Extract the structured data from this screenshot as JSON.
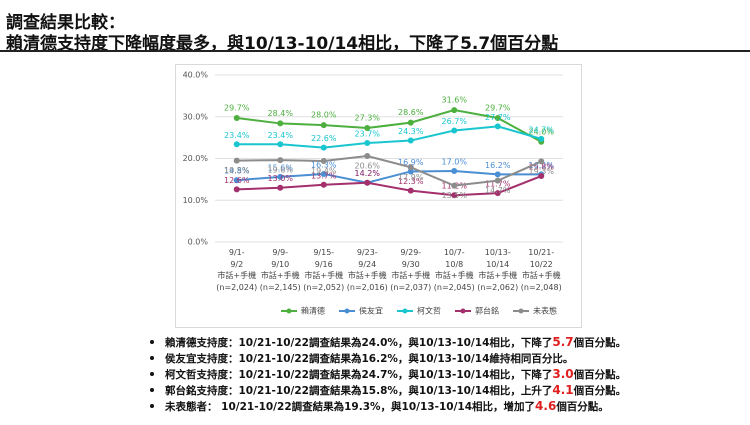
{
  "header": {
    "title": "調查結果比較：",
    "subtitle": "賴清德支持度下降幅度最多，與10/13-10/14相比，下降了5.7個百分點"
  },
  "chart_data": {
    "type": "line",
    "categories": [
      "9/1-\n9/2\n市話+手機\n(n=2,024)",
      "9/9-\n9/10\n市話+手機\n(n=2,145)",
      "9/15-\n9/16\n市話+手機\n(n=2,052)",
      "9/23-\n9/24\n市話+手機\n(n=2,016)",
      "9/29-\n9/30\n市話+手機\n(n=2,037)",
      "10/7-\n10/8\n市話+手機\n(n=2,045)",
      "10/13-\n10/14\n市話+手機\n(n=2,062)",
      "10/21-\n10/22\n市話+手機\n(n=2,048)"
    ],
    "series": [
      {
        "name": "賴清德",
        "color": "#4caf3e",
        "values": [
          29.7,
          28.4,
          28.0,
          27.3,
          28.6,
          31.6,
          29.7,
          24.0
        ],
        "value_labels": [
          "29.7%",
          "28.4%",
          "28.0%",
          "27.3%",
          "28.6%",
          "31.6%",
          "29.7%",
          "24.0%"
        ]
      },
      {
        "name": "侯友宜",
        "color": "#4a8ed4",
        "values": [
          14.8,
          15.6,
          16.3,
          14.2,
          16.9,
          17.0,
          16.2,
          16.2
        ],
        "value_labels": [
          "14.8%",
          "15.6%",
          "16.3%",
          "14.2%",
          "16.9%",
          "17.0%",
          "16.2%",
          "16.2%"
        ]
      },
      {
        "name": "柯文哲",
        "color": "#19c6cf",
        "values": [
          23.4,
          23.4,
          22.6,
          23.7,
          24.3,
          26.7,
          27.7,
          24.7
        ],
        "value_labels": [
          "23.4%",
          "23.4%",
          "22.6%",
          "23.7%",
          "24.3%",
          "26.7%",
          "27.7%",
          "24.7%"
        ]
      },
      {
        "name": "郭台銘",
        "color": "#a3306c",
        "values": [
          12.6,
          13.0,
          13.7,
          14.2,
          12.3,
          11.2,
          11.7,
          15.8
        ],
        "value_labels": [
          "12.6%",
          "13.0%",
          "13.7%",
          "14.2%",
          "12.3%",
          "11.2%",
          "11.7%",
          "15.8%"
        ]
      },
      {
        "name": "未表態",
        "color": "#8c8c8c",
        "values": [
          19.5,
          19.6,
          19.4,
          20.6,
          17.9,
          13.5,
          14.7,
          19.3
        ],
        "value_labels": [
          "19.5%",
          "19.6%",
          "19.4%",
          "20.6%",
          "17.9%",
          "13.5%",
          "14.7%",
          "19.3%"
        ]
      }
    ],
    "ylim": [
      0,
      40
    ],
    "yticks": [
      {
        "value": 0,
        "label": "0.0%"
      },
      {
        "value": 10,
        "label": "10.0%"
      },
      {
        "value": 20,
        "label": "20.0%"
      },
      {
        "value": 30,
        "label": "30.0%"
      },
      {
        "value": 40,
        "label": "40.0%"
      }
    ],
    "grid": true,
    "legend": "bottom"
  },
  "bullets": [
    {
      "text": "賴清德支持度：10/21-10/22調查結果為24.0%，與10/13-10/14相比，下降了",
      "highlight": "5.7",
      "tail": "個百分點。"
    },
    {
      "text": "侯友宜支持度：10/21-10/22調查結果為16.2%，與10/13-10/14維持相同百分比。"
    },
    {
      "text": "柯文哲支持度：10/21-10/22調查結果為24.7%，與10/13-10/14相比，下降了",
      "highlight": "3.0",
      "tail": "個百分點。"
    },
    {
      "text": "郭台銘支持度：10/21-10/22調查結果為15.8%，與10/13-10/14相比，上升了",
      "highlight": "4.1",
      "tail": "個百分點。"
    },
    {
      "text": "未表態者： 10/21-10/22調查結果為19.3%，與10/13-10/14相比，增加了",
      "highlight": "4.6",
      "tail": "個百分點。"
    }
  ]
}
